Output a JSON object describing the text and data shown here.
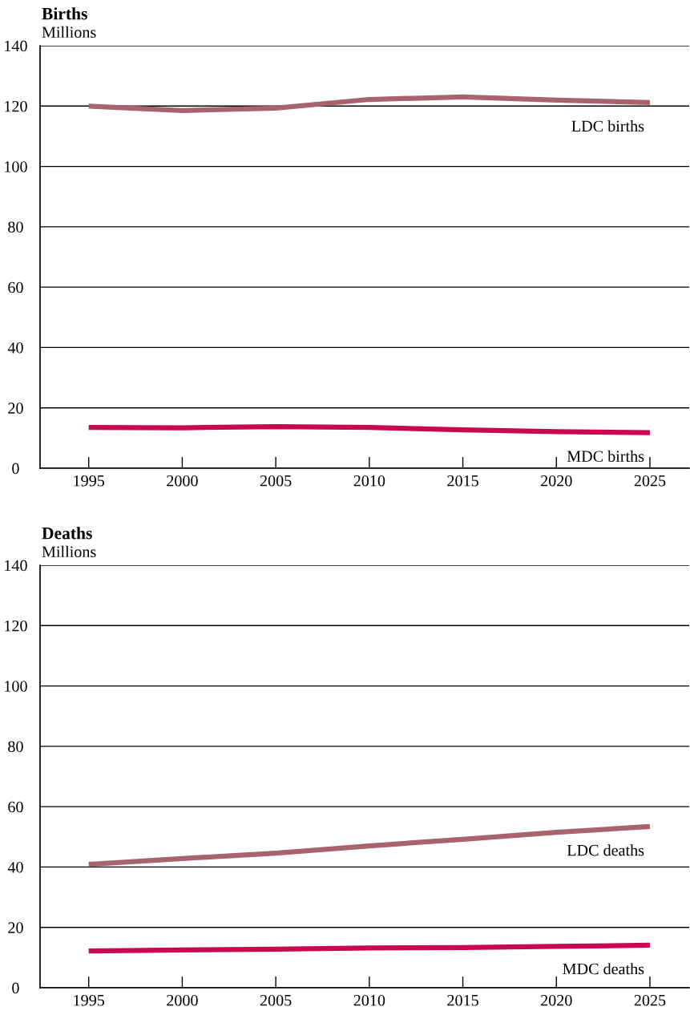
{
  "chart_data": [
    {
      "type": "line",
      "title": "Births",
      "ylabel": "Millions",
      "x": [
        1995,
        2000,
        2005,
        2010,
        2015,
        2020,
        2025
      ],
      "xlim": [
        1992.4,
        2027.1
      ],
      "xticks": [
        1995,
        2000,
        2005,
        2010,
        2015,
        2020,
        2025
      ],
      "ylim": [
        0,
        140
      ],
      "yticks": [
        0,
        20,
        40,
        60,
        80,
        100,
        120,
        140
      ],
      "grid": "y",
      "marker": "none",
      "line_style": "solid",
      "series": [
        {
          "name": "LDC births",
          "color": "#a8636f",
          "values": [
            120,
            118.5,
            119.3,
            122.2,
            123,
            122,
            121.2
          ]
        },
        {
          "name": "MDC births",
          "color": "#c8084f",
          "values": [
            13.5,
            13.4,
            13.8,
            13.5,
            12.7,
            12.1,
            11.8
          ]
        }
      ]
    },
    {
      "type": "line",
      "title": "Deaths",
      "ylabel": "Millions",
      "x": [
        1995,
        2000,
        2005,
        2010,
        2015,
        2020,
        2025
      ],
      "xlim": [
        1992.4,
        2027.1
      ],
      "xticks": [
        1995,
        2000,
        2005,
        2010,
        2015,
        2020,
        2025
      ],
      "ylim": [
        0,
        140
      ],
      "yticks": [
        0,
        20,
        40,
        60,
        80,
        100,
        120,
        140
      ],
      "grid": "y",
      "marker": "none",
      "line_style": "solid",
      "series": [
        {
          "name": "LDC deaths",
          "color": "#a8636f",
          "values": [
            40.9,
            42.8,
            44.6,
            47.0,
            49.2,
            51.5,
            53.4
          ]
        },
        {
          "name": "MDC deaths",
          "color": "#c8084f",
          "values": [
            12.2,
            12.5,
            12.8,
            13.2,
            13.3,
            13.7,
            14.1
          ]
        }
      ]
    }
  ]
}
